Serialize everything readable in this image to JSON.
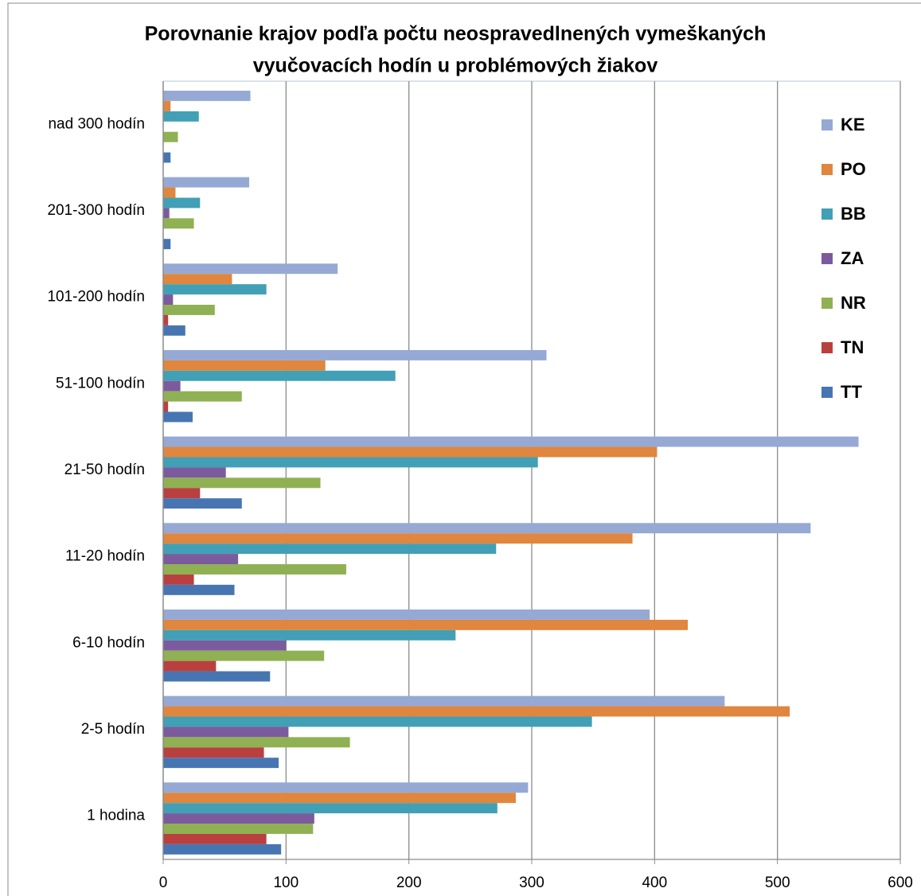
{
  "chart_data": {
    "type": "hbar",
    "title": [
      "Porovnanie krajov podľa počtu neospravedlnených vymeškaných",
      "vyučovacích hodín u problémových žiakov"
    ],
    "categories": [
      "1 hodina",
      "2-5 hodín",
      "6-10 hodín",
      "11-20 hodín",
      "21-50 hodín",
      "51-100 hodín",
      "101-200 hodín",
      "201-300 hodín",
      "nad 300 hodín"
    ],
    "series": [
      {
        "name": "KE",
        "color": "#95a9d4",
        "values": [
          297,
          457,
          396,
          527,
          566,
          312,
          142,
          70,
          71
        ]
      },
      {
        "name": "PO",
        "color": "#e0863e",
        "values": [
          287,
          510,
          427,
          382,
          402,
          132,
          56,
          10,
          6
        ]
      },
      {
        "name": "BB",
        "color": "#41a0b5",
        "values": [
          272,
          349,
          238,
          271,
          305,
          189,
          84,
          30,
          29
        ]
      },
      {
        "name": "ZA",
        "color": "#7b5b9e",
        "values": [
          123,
          102,
          100,
          61,
          51,
          14,
          8,
          5,
          0
        ]
      },
      {
        "name": "NR",
        "color": "#8fb153",
        "values": [
          122,
          152,
          131,
          149,
          128,
          64,
          42,
          25,
          12
        ]
      },
      {
        "name": "TN",
        "color": "#b9403f",
        "values": [
          84,
          82,
          43,
          25,
          30,
          4,
          4,
          0,
          0
        ]
      },
      {
        "name": "TT",
        "color": "#4775b1",
        "values": [
          96,
          94,
          87,
          58,
          64,
          24,
          18,
          6,
          6
        ]
      }
    ],
    "xlim": [
      0,
      600
    ],
    "xticks": [
      0,
      100,
      200,
      300,
      400,
      500,
      600
    ],
    "grid": true,
    "legend": "right"
  }
}
